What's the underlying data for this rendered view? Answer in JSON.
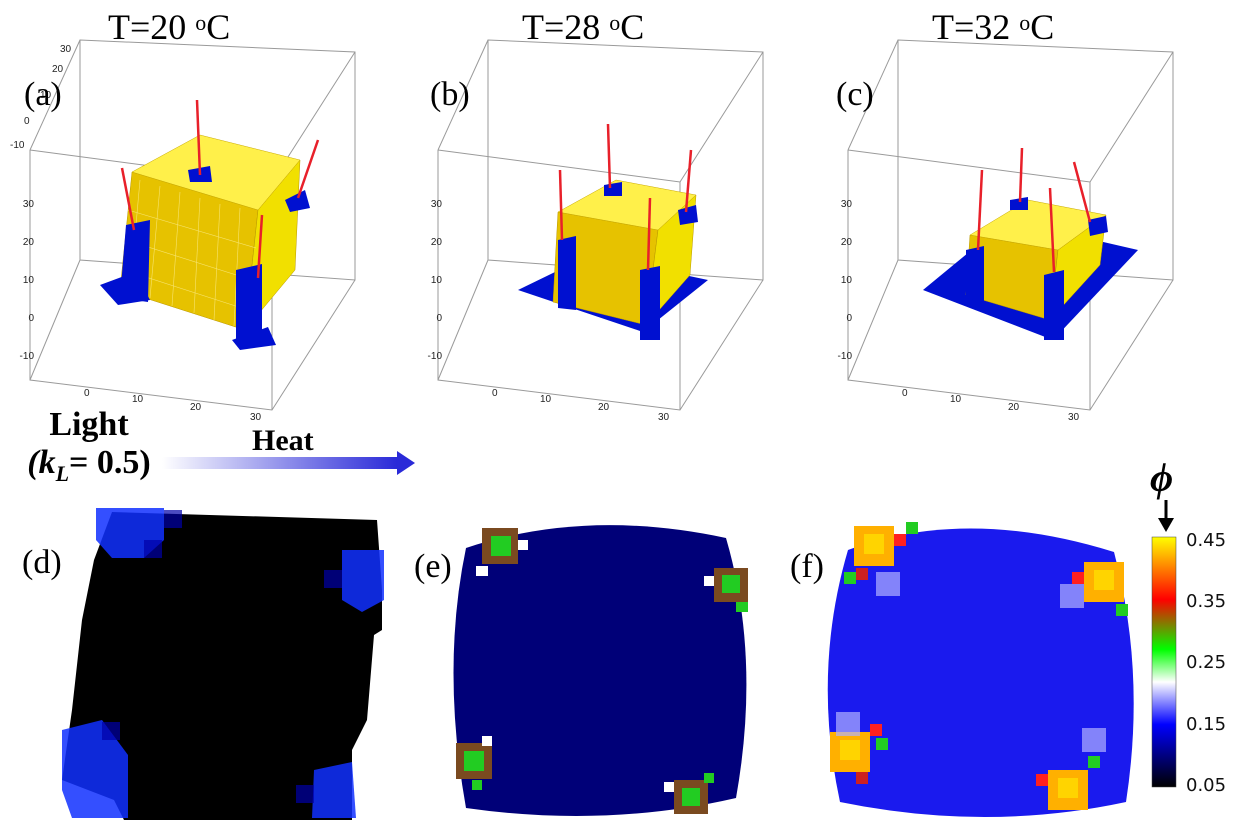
{
  "top_row": {
    "panels": [
      {
        "label": "(a)",
        "temperature": "T=20",
        "temp_unit_sup": "o",
        "temp_unit": "C"
      },
      {
        "label": "(b)",
        "temperature": "T=28",
        "temp_unit_sup": "o",
        "temp_unit": "C"
      },
      {
        "label": "(c)",
        "temperature": "T=32",
        "temp_unit_sup": "o",
        "temp_unit": "C"
      }
    ],
    "axis_ticks": {
      "vertical": [
        "30",
        "20",
        "10",
        "0",
        "-10"
      ],
      "depth": [
        "-10",
        "0",
        "10",
        "20",
        "30"
      ],
      "bottom": [
        "0",
        "10",
        "20",
        "30"
      ]
    }
  },
  "stimulus": {
    "light_label": "Light",
    "kL_label": "(k",
    "kL_sub": "L",
    "kL_value": "= 0.5)",
    "heat_label": "Heat"
  },
  "bottom_row": {
    "panels": [
      {
        "label": "(d)"
      },
      {
        "label": "(e)"
      },
      {
        "label": "(f)"
      }
    ]
  },
  "colorbar": {
    "symbol": "ϕ",
    "ticks": [
      "0.45",
      "0.35",
      "0.25",
      "0.15",
      "0.05"
    ],
    "range": [
      0.05,
      0.45
    ],
    "colors": [
      "#000000",
      "#0000ff",
      "#ffffff",
      "#00ff00",
      "#ff0000",
      "#ffff00"
    ]
  },
  "colors": {
    "gel_surface": "#ffe600",
    "anchor": "#0010d0",
    "force_vector": "#e8202a",
    "heat_arrow": "#2a2ad8"
  }
}
